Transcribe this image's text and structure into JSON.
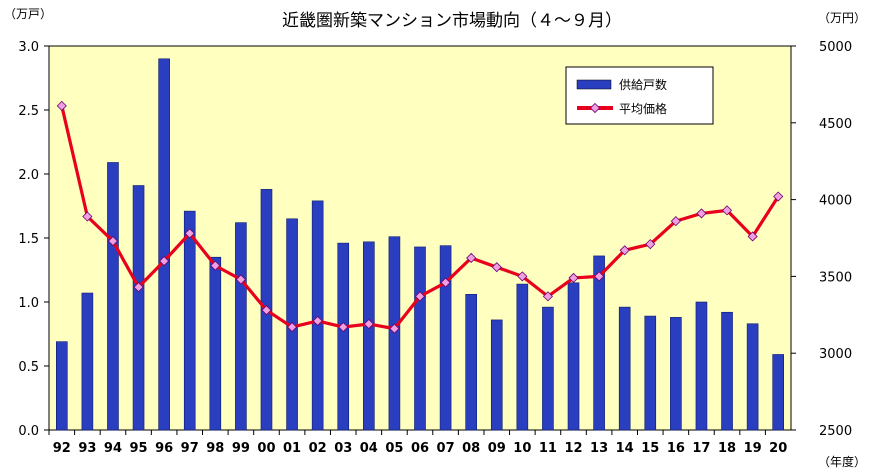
{
  "chart_data": {
    "type": "bar",
    "title": "近畿圏新築マンション市場動向（４～９月）",
    "left_unit": "（万戸）",
    "right_unit": "（万円）",
    "x_unit": "（年度）",
    "categories": [
      "92",
      "93",
      "94",
      "95",
      "96",
      "97",
      "98",
      "99",
      "00",
      "01",
      "02",
      "03",
      "04",
      "05",
      "06",
      "07",
      "08",
      "09",
      "10",
      "11",
      "12",
      "13",
      "14",
      "15",
      "16",
      "17",
      "18",
      "19",
      "20"
    ],
    "series": [
      {
        "name": "供給戸数",
        "type": "bar",
        "axis": "left",
        "color": "#2a3fc0",
        "values": [
          0.69,
          1.07,
          2.09,
          1.91,
          2.9,
          1.71,
          1.35,
          1.62,
          1.88,
          1.65,
          1.79,
          1.46,
          1.47,
          1.51,
          1.43,
          1.44,
          1.06,
          0.86,
          1.14,
          0.96,
          1.15,
          1.36,
          0.96,
          0.89,
          0.88,
          1.0,
          0.92,
          0.83,
          0.59
        ]
      },
      {
        "name": "平均価格",
        "type": "line",
        "axis": "right",
        "color": "#e8001c",
        "marker_color": "#f0a0e0",
        "values": [
          4610,
          3890,
          3730,
          3430,
          3600,
          3780,
          3570,
          3480,
          3280,
          3170,
          3210,
          3170,
          3190,
          3160,
          3370,
          3460,
          3620,
          3560,
          3500,
          3370,
          3490,
          3500,
          3670,
          3710,
          3860,
          3910,
          3930,
          3760,
          4020
        ]
      }
    ],
    "left_axis": {
      "min": 0,
      "max": 3.0,
      "ticks": [
        "0.0",
        "0.5",
        "1.0",
        "1.5",
        "2.0",
        "2.5",
        "3.0"
      ]
    },
    "right_axis": {
      "min": 2500,
      "max": 5000,
      "ticks": [
        "2500",
        "3000",
        "3500",
        "4000",
        "4500",
        "5000"
      ]
    },
    "plot_background": "#ffffc0",
    "legend_position": "top-right",
    "grid": false
  }
}
